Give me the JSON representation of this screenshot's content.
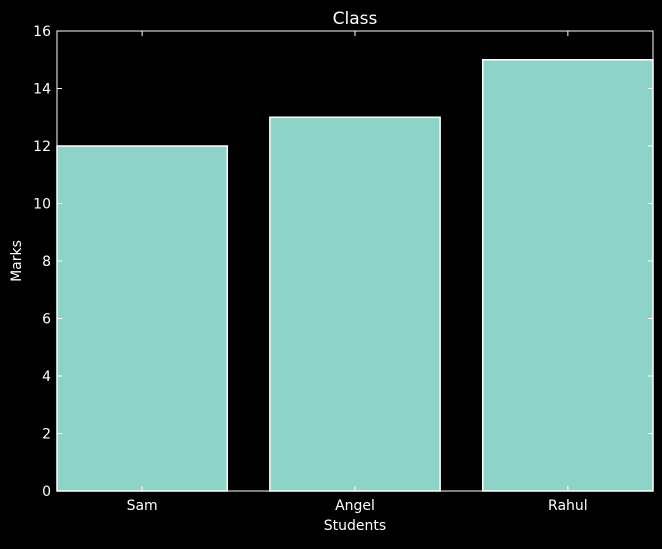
{
  "colors": {
    "background": "#000000",
    "bar_fill": "#8dd3c7",
    "bar_edge": "#ffffff",
    "axes": "#ffffff",
    "text": "#ffffff"
  },
  "chart_data": {
    "type": "bar",
    "title": "Class",
    "xlabel": "Students",
    "ylabel": "Marks",
    "categories": [
      "Sam",
      "Angel",
      "Rahul"
    ],
    "values": [
      12,
      13,
      15
    ],
    "ylim": [
      0,
      16
    ],
    "yticks": [
      0,
      2,
      4,
      6,
      8,
      10,
      12,
      14,
      16
    ],
    "grid": false,
    "legend": "none"
  }
}
